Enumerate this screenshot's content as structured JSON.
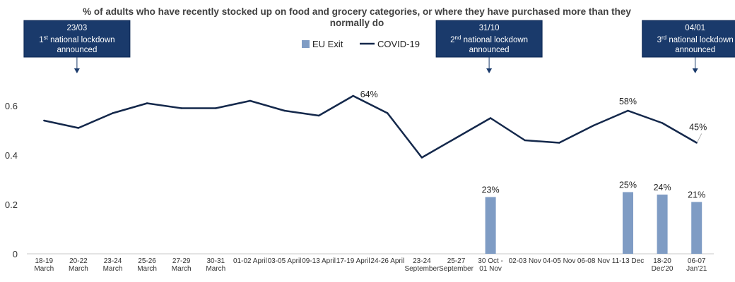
{
  "chart_data": {
    "type": "bar+line",
    "title_lines": [
      "% of adults who have recently stocked up on food and grocery categories, or where they have purchased more than they",
      "normally do"
    ],
    "categories": [
      [
        "18-19",
        "March"
      ],
      [
        "20-22",
        "March"
      ],
      [
        "23-24",
        "March"
      ],
      [
        "25-26",
        "March"
      ],
      [
        "27-29",
        "March"
      ],
      [
        "30-31",
        "March"
      ],
      [
        "01-02 April"
      ],
      [
        "03-05 April"
      ],
      [
        "09-13 April"
      ],
      [
        "17-19 April"
      ],
      [
        "24-26 April"
      ],
      [
        "23-24",
        "September"
      ],
      [
        "25-27",
        "September"
      ],
      [
        "30 Oct -",
        "01 Nov"
      ],
      [
        "02-03 Nov"
      ],
      [
        "04-05 Nov"
      ],
      [
        "06-08 Nov"
      ],
      [
        "11-13 Dec"
      ],
      [
        "18-20",
        "Dec'20"
      ],
      [
        "06-07",
        "Jan'21"
      ]
    ],
    "series": [
      {
        "name": "EU Exit",
        "type": "bar",
        "color": "#7f9cc4",
        "values": [
          null,
          null,
          null,
          null,
          null,
          null,
          null,
          null,
          null,
          null,
          null,
          null,
          null,
          0.23,
          null,
          null,
          null,
          0.25,
          0.24,
          0.21
        ],
        "labels": [
          null,
          null,
          null,
          null,
          null,
          null,
          null,
          null,
          null,
          null,
          null,
          null,
          null,
          "23%",
          null,
          null,
          null,
          "25%",
          "24%",
          "21%"
        ]
      },
      {
        "name": "COVID-19",
        "type": "line",
        "color": "#14284b",
        "values": [
          0.54,
          0.51,
          0.57,
          0.61,
          0.59,
          0.59,
          0.62,
          0.58,
          0.56,
          0.64,
          0.57,
          0.39,
          0.47,
          0.55,
          0.46,
          0.45,
          0.52,
          0.58,
          0.53,
          0.45
        ],
        "labels": [
          null,
          null,
          null,
          null,
          null,
          null,
          null,
          null,
          null,
          "64%",
          null,
          null,
          null,
          null,
          null,
          null,
          null,
          "58%",
          null,
          "45%"
        ]
      }
    ],
    "yticks": [
      "0",
      "0.2",
      "0.4",
      "0.6"
    ],
    "ylim": [
      0,
      0.7
    ],
    "grid": false,
    "legend_position": "top-center",
    "annotations": [
      {
        "category_index": 1,
        "date": "23/03",
        "ordinal": "1",
        "ordinal_suffix": "st",
        "text_line1": " national lockdown",
        "text_line2": "announced"
      },
      {
        "category_index": 13,
        "date": "31/10",
        "ordinal": "2",
        "ordinal_suffix": "nd",
        "text_line1": " national lockdown",
        "text_line2": "announced"
      },
      {
        "category_index": 19,
        "date": "04/01",
        "ordinal": "3",
        "ordinal_suffix": "rd",
        "text_line1": " national lockdown",
        "text_line2": "announced"
      }
    ]
  }
}
